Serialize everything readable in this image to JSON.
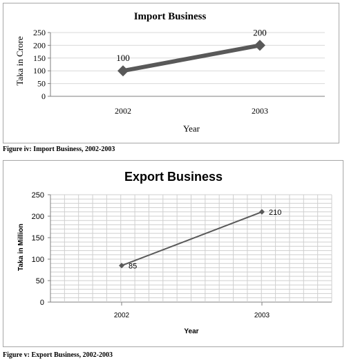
{
  "charts": [
    {
      "caption": "Figure iv: Import Business, 2002-2003",
      "chart_data": {
        "type": "line",
        "title": "Import Business",
        "xlabel": "Year",
        "ylabel": "Taka in Crore",
        "categories": [
          "2002",
          "2003"
        ],
        "series": [
          {
            "values": [
              100,
              200
            ]
          }
        ],
        "data_labels": [
          "100",
          "200"
        ],
        "ylim": [
          0,
          250
        ],
        "yticks": [
          "0",
          "50",
          "100",
          "150",
          "200",
          "250"
        ],
        "grid": "horizontal",
        "line_color": "#595959"
      }
    },
    {
      "caption": "Figure v: Export Business, 2002-2003",
      "chart_data": {
        "type": "line",
        "title": "Export Business",
        "xlabel": "Year",
        "ylabel": "Taka in Million",
        "categories": [
          "2002",
          "2003"
        ],
        "series": [
          {
            "values": [
              85,
              210
            ]
          }
        ],
        "data_labels": [
          "85",
          "210"
        ],
        "ylim": [
          0,
          250
        ],
        "yticks": [
          "0",
          "50",
          "100",
          "150",
          "200",
          "250"
        ],
        "grid": "horizontal and vertical minor",
        "line_color": "#595959"
      }
    }
  ]
}
